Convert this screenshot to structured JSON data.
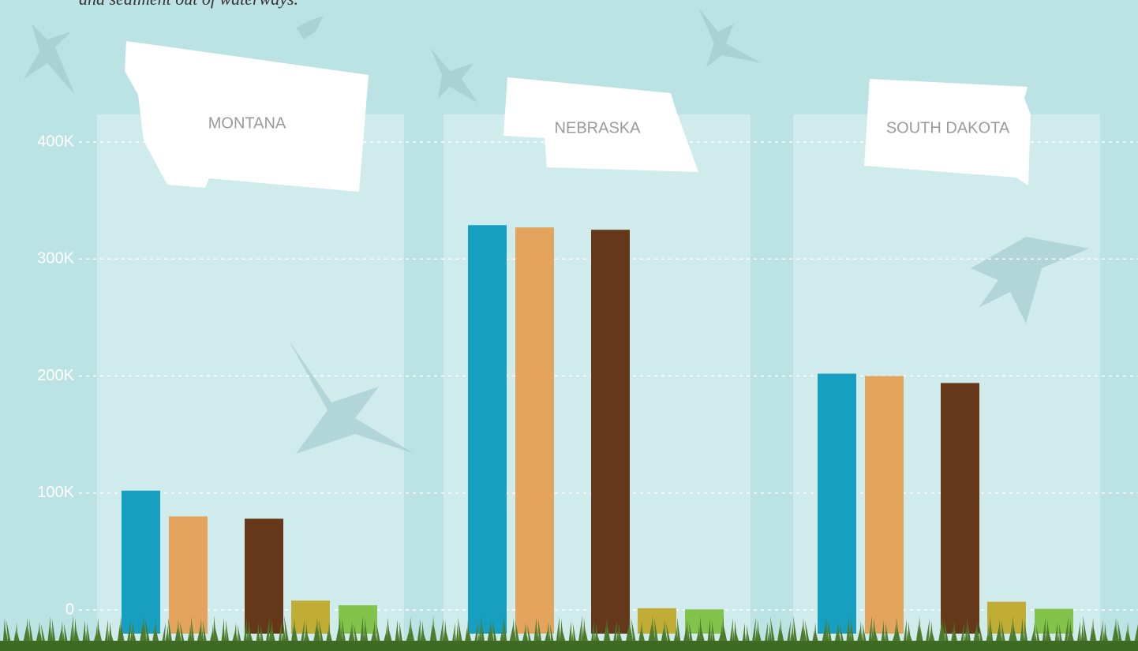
{
  "chart_data": {
    "type": "bar",
    "subtitle": "and sediment out of waterways.",
    "categories": [
      "MONTANA",
      "NEBRASKA",
      "SOUTH DAKOTA"
    ],
    "series": [
      {
        "color": "#179fc1",
        "values": [
          102000,
          329000,
          202000
        ]
      },
      {
        "color": "#e3a55e",
        "values": [
          80000,
          327000,
          200000
        ]
      },
      {
        "color": "#643818",
        "values": [
          78000,
          325000,
          194000
        ]
      },
      {
        "color": "#c1ad35",
        "values": [
          8000,
          1500,
          7000
        ]
      },
      {
        "color": "#82c34b",
        "values": [
          4000,
          500,
          1000
        ]
      }
    ],
    "ylim": [
      0,
      400000
    ],
    "yticks": [
      {
        "value": 0,
        "label": "0"
      },
      {
        "value": 100000,
        "label": "100K"
      },
      {
        "value": 200000,
        "label": "200K"
      },
      {
        "value": 300000,
        "label": "300K"
      },
      {
        "value": 400000,
        "label": "400K"
      }
    ],
    "grid": true
  }
}
